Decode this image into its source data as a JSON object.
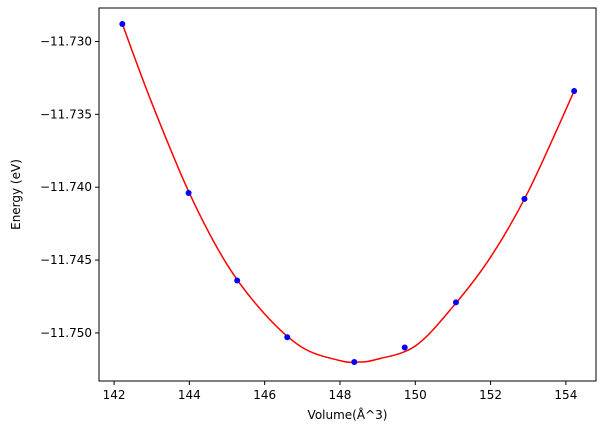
{
  "chart_data": {
    "type": "scatter",
    "title": "",
    "xlabel": "Volume(Å^3)",
    "ylabel": "Energy (eV)",
    "xlim": [
      141.6,
      154.8
    ],
    "ylim": [
      -11.7533,
      -11.7277
    ],
    "x_ticks": [
      142,
      144,
      146,
      148,
      150,
      152,
      154
    ],
    "x_tick_labels": [
      "142",
      "144",
      "146",
      "148",
      "150",
      "152",
      "154"
    ],
    "y_ticks": [
      -11.73,
      -11.735,
      -11.74,
      -11.745,
      -11.75
    ],
    "y_tick_labels": [
      "−11.730",
      "−11.735",
      "−11.740",
      "−11.745",
      "−11.750"
    ],
    "grid": false,
    "points_color": "#0000ff",
    "fit_color": "#ff0000",
    "points": {
      "x": [
        142.22,
        143.98,
        145.27,
        146.6,
        148.38,
        149.72,
        151.08,
        152.9,
        154.22
      ],
      "y": [
        -11.7288,
        -11.7404,
        -11.7464,
        -11.7503,
        -11.752,
        -11.751,
        -11.7479,
        -11.7408,
        -11.7334
      ]
    },
    "fit_curve": {
      "x": [
        142.22,
        143.0,
        144.0,
        145.0,
        146.0,
        147.0,
        148.0,
        148.5,
        149.0,
        150.0,
        151.0,
        152.0,
        153.0,
        154.22
      ],
      "y": [
        -11.7288,
        -11.7342,
        -11.7404,
        -11.7453,
        -11.7487,
        -11.751,
        -11.7519,
        -11.752,
        -11.7518,
        -11.7509,
        -11.7482,
        -11.7448,
        -11.7403,
        -11.7334
      ]
    }
  }
}
